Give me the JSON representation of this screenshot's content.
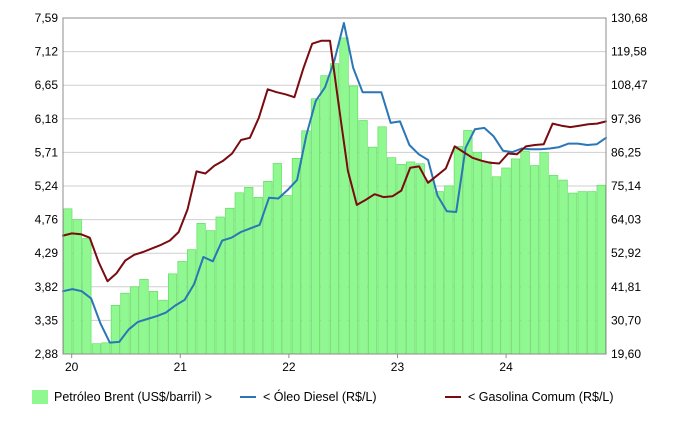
{
  "chart_data": {
    "type": "bar+line",
    "x_tick_labels": [
      "20",
      "21",
      "22",
      "23",
      "24"
    ],
    "left_axis": {
      "ticks": [
        "7,59",
        "7,12",
        "6,65",
        "6,18",
        "5,71",
        "5,24",
        "4,76",
        "4,29",
        "3,82",
        "3,35",
        "2,88"
      ],
      "ylim": [
        2.88,
        7.59
      ]
    },
    "right_axis": {
      "ticks": [
        "130,68",
        "119,58",
        "108,47",
        "97,36",
        "86,25",
        "75,14",
        "64,03",
        "52,92",
        "41,81",
        "30,70",
        "19,60"
      ],
      "ylim": [
        19.6,
        130.68
      ]
    },
    "grid": true,
    "legend_position": "bottom",
    "x_start": 2019.92,
    "x_end": 2024.92,
    "series": [
      {
        "name": "Petróleo Brent (US$/barril) >",
        "type": "bar",
        "axis": "right",
        "color": "#90f890",
        "edge_color": "#5ad85a",
        "values": [
          67.6,
          64.0,
          57.8,
          23.0,
          23.3,
          35.7,
          39.7,
          41.8,
          44.3,
          40.3,
          37.4,
          46.1,
          50.2,
          54.1,
          62.8,
          60.4,
          64.9,
          67.8,
          72.9,
          74.7,
          71.4,
          76.7,
          82.6,
          72.0,
          84.3,
          93.4,
          104.0,
          111.6,
          115.6,
          124.1,
          108.2,
          96.8,
          88.0,
          94.7,
          84.5,
          82.3,
          83.1,
          82.5,
          76.9,
          73.3,
          75.2,
          88.2,
          93.5,
          86.3,
          83.2,
          78.2,
          81.1,
          84.1,
          86.7,
          81.9,
          86.2,
          78.7,
          77.1,
          72.8,
          73.3,
          73.3,
          75.4
        ]
      },
      {
        "name": "< Óleo Diesel (R$/L)",
        "type": "line",
        "axis": "left",
        "color": "#2a76b6",
        "values": [
          3.76,
          3.79,
          3.76,
          3.66,
          3.31,
          3.04,
          3.05,
          3.22,
          3.33,
          3.37,
          3.41,
          3.46,
          3.56,
          3.64,
          3.86,
          4.24,
          4.18,
          4.47,
          4.51,
          4.59,
          4.64,
          4.69,
          5.07,
          5.06,
          5.18,
          5.32,
          5.95,
          6.43,
          6.62,
          7.0,
          7.52,
          6.89,
          6.55,
          6.55,
          6.55,
          6.12,
          6.14,
          5.81,
          5.68,
          5.6,
          5.1,
          4.88,
          4.87,
          5.77,
          6.03,
          6.05,
          5.93,
          5.73,
          5.71,
          5.76,
          5.75,
          5.75,
          5.76,
          5.78,
          5.83,
          5.83,
          5.81,
          5.82,
          5.91
        ]
      },
      {
        "name": "< Gasolina Comum (R$/L)",
        "type": "line",
        "axis": "left",
        "color": "#7a0b10",
        "values": [
          4.54,
          4.57,
          4.56,
          4.51,
          4.17,
          3.9,
          4.01,
          4.19,
          4.27,
          4.31,
          4.36,
          4.41,
          4.47,
          4.59,
          4.91,
          5.44,
          5.41,
          5.52,
          5.59,
          5.69,
          5.88,
          5.91,
          6.19,
          6.59,
          6.55,
          6.52,
          6.48,
          6.88,
          7.23,
          7.27,
          7.27,
          6.34,
          5.45,
          4.97,
          5.04,
          5.12,
          5.08,
          5.09,
          5.17,
          5.49,
          5.51,
          5.28,
          5.38,
          5.48,
          5.79,
          5.71,
          5.63,
          5.59,
          5.56,
          5.55,
          5.69,
          5.68,
          5.79,
          5.81,
          5.82,
          6.11,
          6.08,
          6.06,
          6.08,
          6.1,
          6.11,
          6.14
        ]
      }
    ]
  }
}
